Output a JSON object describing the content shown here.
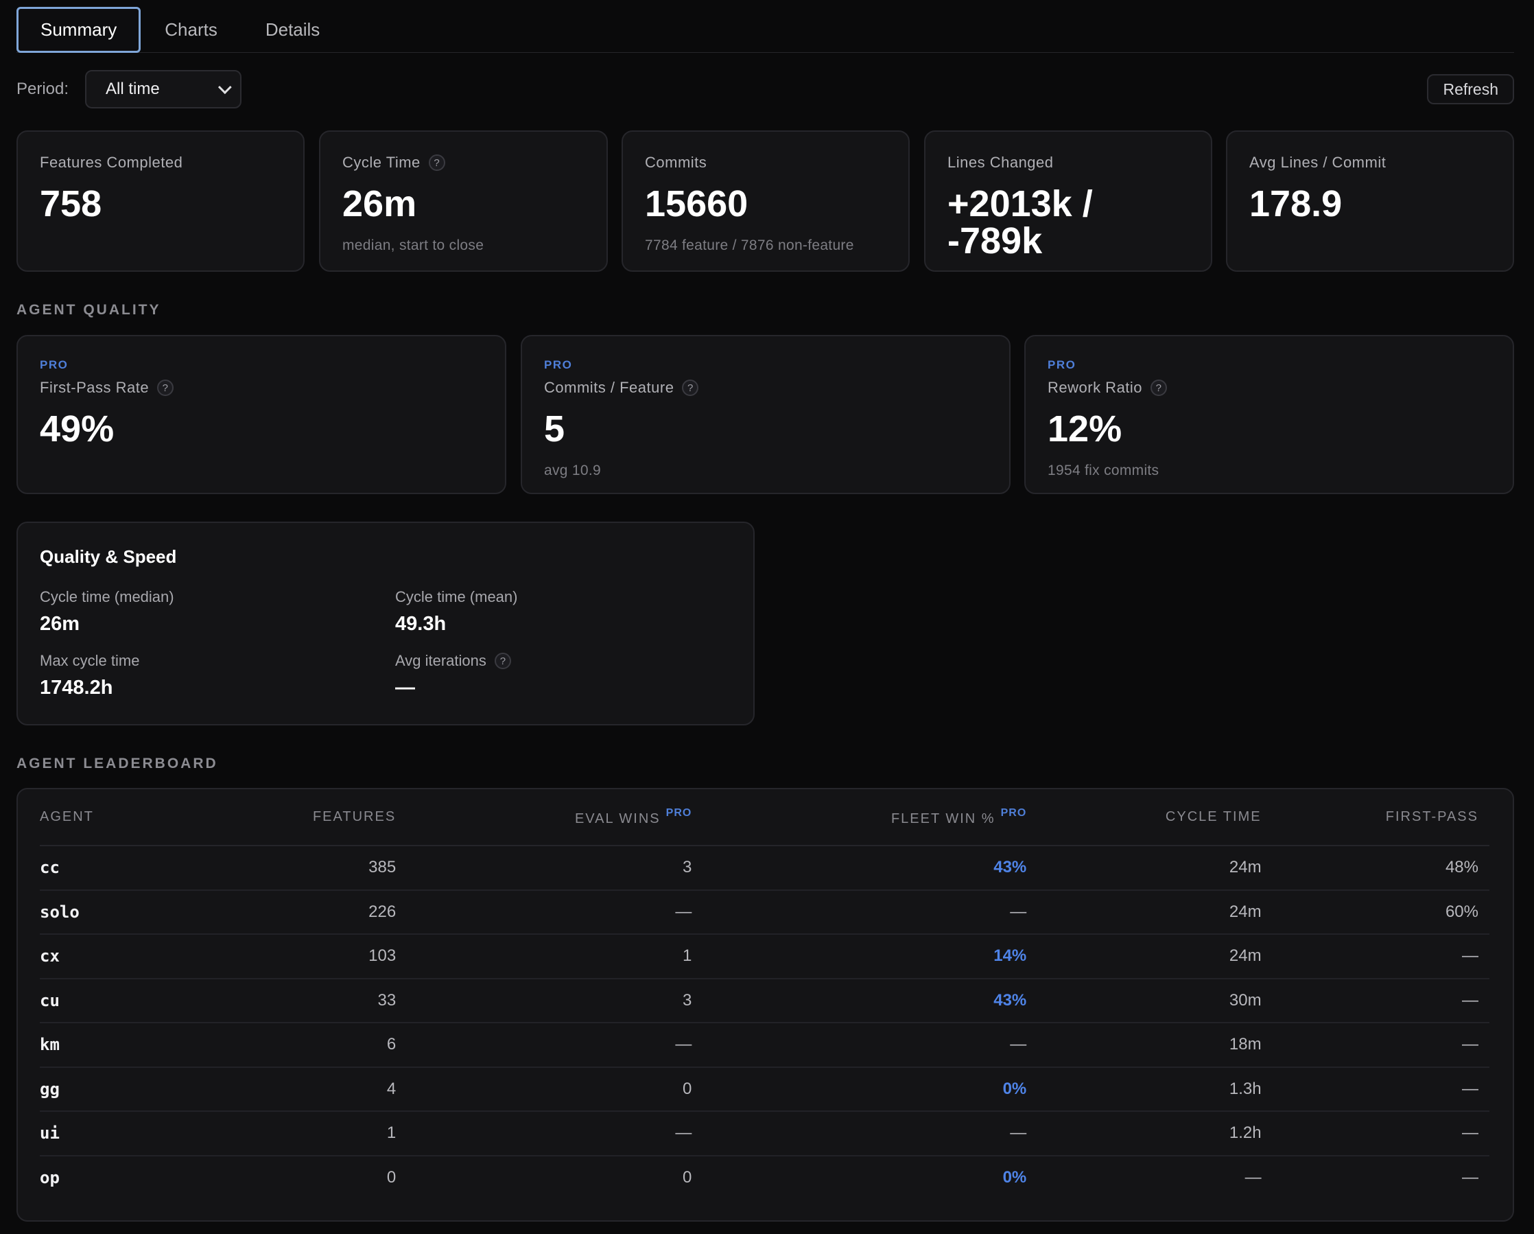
{
  "tabs": [
    {
      "label": "Summary",
      "active": true
    },
    {
      "label": "Charts",
      "active": false
    },
    {
      "label": "Details",
      "active": false
    }
  ],
  "period": {
    "label": "Period:",
    "selected": "All time"
  },
  "refresh_label": "Refresh",
  "stats": [
    {
      "label": "Features Completed",
      "value": "758",
      "sub": ""
    },
    {
      "label": "Cycle Time",
      "value": "26m",
      "sub": "median, start to close",
      "help": "?"
    },
    {
      "label": "Commits",
      "value": "15660",
      "sub": "7784 feature / 7876 non-feature"
    },
    {
      "label": "Lines Changed",
      "value_line1": "+2013k /",
      "value_line2": "-789k"
    },
    {
      "label": "Avg Lines / Commit",
      "value": "178.9"
    }
  ],
  "agent_quality": {
    "title": "AGENT QUALITY",
    "cards": [
      {
        "badge": "PRO",
        "label": "First-Pass Rate",
        "help": "?",
        "value": "49%",
        "sub": ""
      },
      {
        "badge": "PRO",
        "label": "Commits / Feature",
        "help": "?",
        "value": "5",
        "sub": "avg 10.9"
      },
      {
        "badge": "PRO",
        "label": "Rework Ratio",
        "help": "?",
        "value": "12%",
        "sub": "1954 fix commits"
      }
    ]
  },
  "quality_speed": {
    "title": "Quality & Speed",
    "items": [
      {
        "label": "Cycle time (median)",
        "value": "26m"
      },
      {
        "label": "Cycle time (mean)",
        "value": "49.3h"
      },
      {
        "label": "Max cycle time",
        "value": "1748.2h"
      },
      {
        "label": "Avg iterations",
        "value": "—",
        "help": "?"
      }
    ]
  },
  "leaderboard": {
    "title": "AGENT LEADERBOARD",
    "columns": [
      {
        "label": "AGENT"
      },
      {
        "label": "FEATURES"
      },
      {
        "label": "EVAL WINS",
        "badge": "PRO"
      },
      {
        "label": "FLEET WIN %",
        "badge": "PRO"
      },
      {
        "label": "CYCLE TIME"
      },
      {
        "label": "FIRST-PASS"
      }
    ],
    "rows": [
      [
        "cc",
        "385",
        "3",
        "43%",
        "24m",
        "48%"
      ],
      [
        "solo",
        "226",
        "—",
        "—",
        "24m",
        "60%"
      ],
      [
        "cx",
        "103",
        "1",
        "14%",
        "24m",
        "—"
      ],
      [
        "cu",
        "33",
        "3",
        "43%",
        "30m",
        "—"
      ],
      [
        "km",
        "6",
        "—",
        "—",
        "18m",
        "—"
      ],
      [
        "gg",
        "4",
        "0",
        "0%",
        "1.3h",
        "—"
      ],
      [
        "ui",
        "1",
        "—",
        "—",
        "1.2h",
        "—"
      ],
      [
        "op",
        "0",
        "0",
        "0%",
        "—",
        "—"
      ]
    ]
  },
  "colors": {
    "accent": "#4f84e8",
    "background": "#0a0a0b",
    "card": "#141416"
  }
}
